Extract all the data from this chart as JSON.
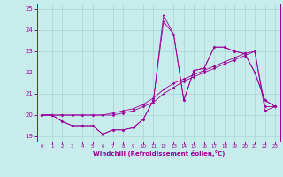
{
  "xlabel": "Windchill (Refroidissement éolien,°C)",
  "bg_color": "#c8ecec",
  "line_color": "#990099",
  "grid_color": "#a8d4d4",
  "xlim": [
    -0.5,
    23.5
  ],
  "ylim": [
    18.75,
    25.25
  ],
  "yticks": [
    19,
    20,
    21,
    22,
    23,
    24,
    25
  ],
  "xticks": [
    0,
    1,
    2,
    3,
    4,
    5,
    6,
    7,
    8,
    9,
    10,
    11,
    12,
    13,
    14,
    15,
    16,
    17,
    18,
    19,
    20,
    21,
    22,
    23
  ],
  "series": [
    [
      20.0,
      20.0,
      19.7,
      19.5,
      19.5,
      19.5,
      19.1,
      19.3,
      19.3,
      19.4,
      19.8,
      20.7,
      24.4,
      23.8,
      20.7,
      22.1,
      22.2,
      23.2,
      23.2,
      23.0,
      22.9,
      22.0,
      20.7,
      20.4
    ],
    [
      20.0,
      20.0,
      19.7,
      19.5,
      19.5,
      19.5,
      19.1,
      19.3,
      19.3,
      19.4,
      19.8,
      20.7,
      24.7,
      23.8,
      20.7,
      22.1,
      22.2,
      23.2,
      23.2,
      23.0,
      22.9,
      22.0,
      20.7,
      20.4
    ],
    [
      20.0,
      20.0,
      20.0,
      20.0,
      20.0,
      20.0,
      20.0,
      20.1,
      20.2,
      20.3,
      20.5,
      20.8,
      21.2,
      21.5,
      21.7,
      21.9,
      22.1,
      22.3,
      22.5,
      22.7,
      22.9,
      23.0,
      20.4,
      20.4
    ],
    [
      20.0,
      20.0,
      20.0,
      20.0,
      20.0,
      20.0,
      20.0,
      20.0,
      20.1,
      20.2,
      20.4,
      20.6,
      21.0,
      21.3,
      21.6,
      21.8,
      22.0,
      22.2,
      22.4,
      22.6,
      22.8,
      23.0,
      20.2,
      20.4
    ]
  ]
}
